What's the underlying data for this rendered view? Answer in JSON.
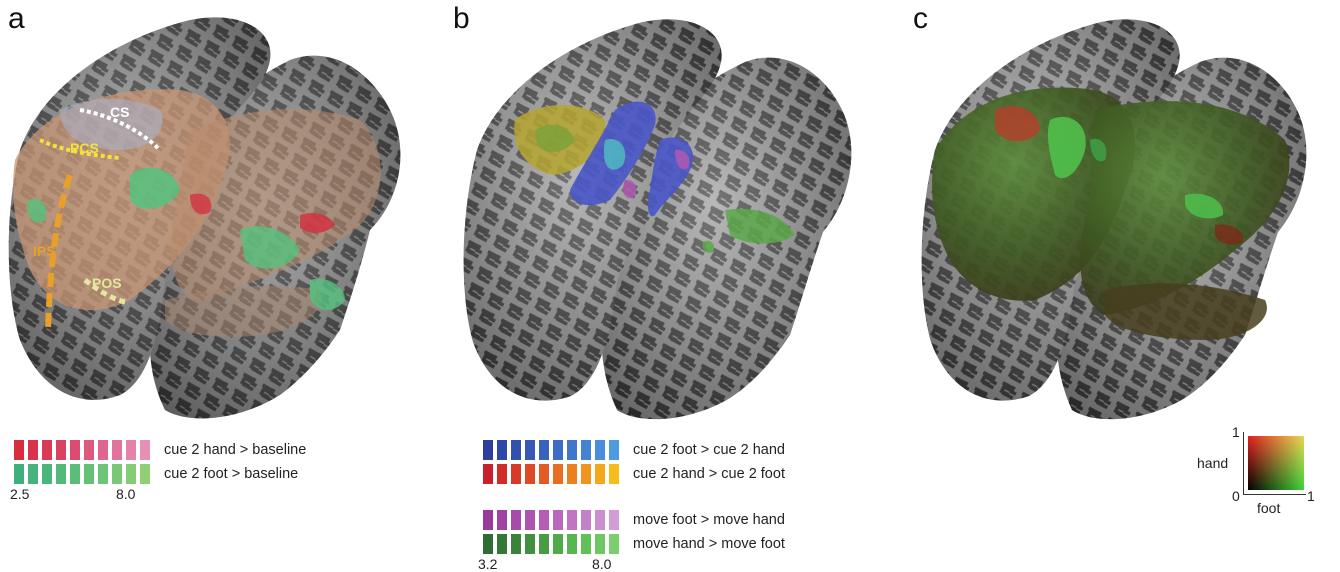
{
  "panels": [
    {
      "label": "a"
    },
    {
      "label": "b"
    },
    {
      "label": "c"
    }
  ],
  "panel_a": {
    "sulci": [
      "CS",
      "PCS",
      "IPS",
      "POS"
    ],
    "legend": [
      {
        "text": "cue 2 hand > baseline",
        "colors": [
          "#d62e3c",
          "#d8334a",
          "#d93a56",
          "#da4262",
          "#dc4c70",
          "#de587e",
          "#e0658d",
          "#e2749b",
          "#e582a9",
          "#e790b6"
        ]
      },
      {
        "text": "cue 2 foot > baseline",
        "colors": [
          "#3fb07b",
          "#45b37a",
          "#4ab679",
          "#52b978",
          "#5bbd77",
          "#64c076",
          "#6dc476",
          "#78c876",
          "#84cc75",
          "#90cf74"
        ]
      }
    ],
    "range_min": "2.5",
    "range_max": "8.0"
  },
  "panel_b": {
    "legend": [
      {
        "text": "cue 2 foot > cue 2 hand",
        "colors": [
          "#2c3f9c",
          "#2f47a6",
          "#3250ae",
          "#3559b5",
          "#3962bd",
          "#3c6cc5",
          "#4077cc",
          "#4482d3",
          "#488eda",
          "#4c9ae0"
        ]
      },
      {
        "text": "cue 2 hand > cue 2 foot",
        "colors": [
          "#c8202c",
          "#d02c2a",
          "#d83a28",
          "#de4a26",
          "#e35a24",
          "#e86c22",
          "#ec7f20",
          "#f0931f",
          "#f4a81e",
          "#f7bd1d"
        ]
      },
      {
        "text": "move foot > move hand",
        "colors": [
          "#9a3b9c",
          "#a142a3",
          "#a84aa9",
          "#ae53af",
          "#b45db6",
          "#ba68bc",
          "#c074c2",
          "#c581c8",
          "#cb8fce",
          "#d19dd4"
        ]
      },
      {
        "text": "move hand > move foot",
        "colors": [
          "#2f6b33",
          "#357737",
          "#3b833b",
          "#41903f",
          "#489d44",
          "#4faa49",
          "#57b64f",
          "#61c057",
          "#6dc862",
          "#7ace6e"
        ]
      }
    ],
    "range_min": "3.2",
    "range_max": "8.0"
  },
  "panel_c": {
    "colormap": {
      "y_label": "hand",
      "x_label": "foot",
      "origin": "0",
      "y_max": "1",
      "x_max": "1"
    }
  }
}
